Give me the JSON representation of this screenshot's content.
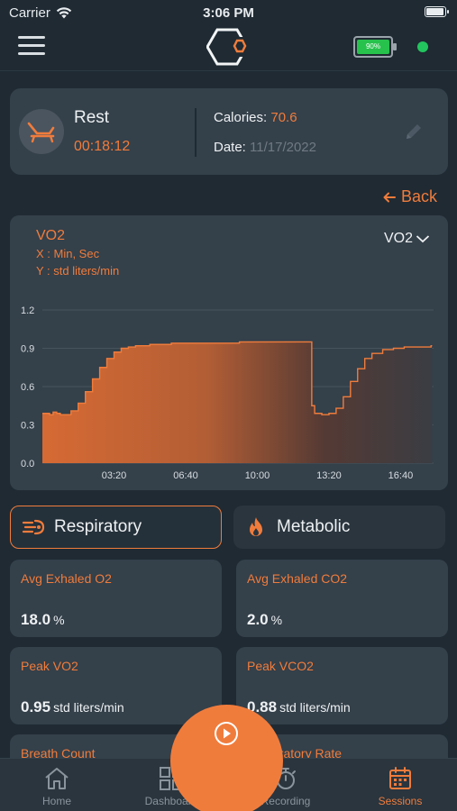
{
  "status_bar": {
    "carrier": "Carrier",
    "time": "3:06 PM"
  },
  "header": {
    "device_battery": "90%"
  },
  "session": {
    "activity": "Rest",
    "timer": "00:18:12",
    "calories_label": "Calories:",
    "calories_value": "70.6",
    "date_label": "Date:",
    "date_value": "11/17/2022"
  },
  "back_label": "Back",
  "chart_data": {
    "type": "area",
    "title": "VO2",
    "x_label": "X : Min, Sec",
    "y_label": "Y : std liters/min",
    "selected_metric": "VO2",
    "y_ticks": [
      "0.0",
      "0.3",
      "0.6",
      "0.9",
      "1.2"
    ],
    "ylim": [
      0,
      1.2
    ],
    "x_ticks": [
      "03:20",
      "06:40",
      "10:00",
      "13:20",
      "16:40"
    ],
    "x_tick_seconds": [
      200,
      400,
      600,
      800,
      1000
    ],
    "xlim_seconds": [
      0,
      1092
    ],
    "grid": true,
    "color": "#f07c3c",
    "x_seconds": [
      0,
      20,
      30,
      40,
      50,
      60,
      80,
      100,
      120,
      140,
      160,
      180,
      200,
      220,
      240,
      260,
      280,
      300,
      330,
      360,
      400,
      450,
      500,
      550,
      600,
      650,
      700,
      745,
      752,
      760,
      780,
      800,
      820,
      840,
      860,
      880,
      900,
      920,
      950,
      980,
      1010,
      1050,
      1085
    ],
    "values": [
      0.39,
      0.38,
      0.4,
      0.39,
      0.38,
      0.38,
      0.41,
      0.47,
      0.56,
      0.66,
      0.75,
      0.82,
      0.87,
      0.9,
      0.91,
      0.92,
      0.92,
      0.93,
      0.93,
      0.94,
      0.94,
      0.94,
      0.94,
      0.95,
      0.95,
      0.95,
      0.95,
      0.95,
      0.45,
      0.39,
      0.38,
      0.39,
      0.43,
      0.52,
      0.64,
      0.74,
      0.82,
      0.86,
      0.89,
      0.9,
      0.91,
      0.91,
      0.92
    ]
  },
  "tabs": {
    "respiratory": "Respiratory",
    "metabolic": "Metabolic"
  },
  "metrics": [
    {
      "label": "Avg Exhaled O2",
      "value": "18.0",
      "unit": "%"
    },
    {
      "label": "Avg Exhaled CO2",
      "value": "2.0",
      "unit": "%"
    },
    {
      "label": "Peak VO2",
      "value": "0.95",
      "unit": "std liters/min"
    },
    {
      "label": "Peak VCO2",
      "value": "0.88",
      "unit": "std liters/min"
    },
    {
      "label": "Breath Count",
      "value": "",
      "unit": ""
    },
    {
      "label": "Respiratory Rate",
      "value": "",
      "unit": ""
    }
  ],
  "nav": {
    "home": "Home",
    "dashboard": "Dashboard",
    "recording": "Recording",
    "sessions": "Sessions"
  }
}
